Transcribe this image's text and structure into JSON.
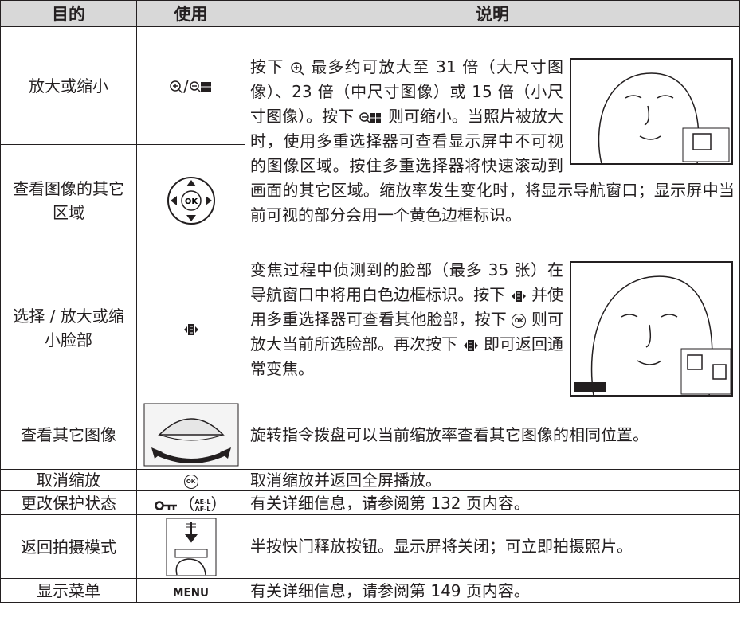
{
  "icons": {
    "ok": "OK"
  },
  "table": {
    "header": [
      "目的",
      "使用",
      "说明"
    ],
    "rows": [
      {
        "purpose": "放大或缩小",
        "use": "/",
        "description": [
          "按下",
          "最多约可放大至 31 倍（大尺寸图像）、23 倍（中尺寸图像）或 15 倍（小尺寸图像）。按下",
          "则可缩小。当照片被放大时，使用多重选择器可查看显示屏中不可视的图像区域。按住多重选择器将快速滚动到画面的其它区域。缩放率发生变化时，将显示导航窗口；显示屏中当前可视的部分会用一个黄色边框标识。"
        ]
      },
      {
        "purpose": "查看图像的其它区域"
      },
      {
        "purpose": "选择 / 放大或缩小脸部",
        "description": [
          "变焦过程中侦测到的脸部（最多 35 张）在导航窗口中将用白色边框标识。按下",
          "并使用多重选择器可查看其他脸部，按下",
          "则可放大当前所选脸部。再次按下",
          "即可返回通常变焦。"
        ]
      },
      {
        "purpose": "查看其它图像",
        "description": [
          "旋转指令拨盘可以当前缩放率查看其它图像的相同位置。"
        ]
      },
      {
        "purpose": "取消缩放",
        "description": [
          "取消缩放并返回全屏播放。"
        ]
      },
      {
        "purpose": "更改保护状态",
        "use": [
          "（",
          "AE-L",
          "AF-L",
          "）"
        ],
        "description": [
          "有关详细信息，请参阅第 132 页内容。"
        ]
      },
      {
        "purpose": "返回拍摄模式",
        "description": [
          "半按快门释放按钮。显示屏将关闭；可立即拍摄照片。"
        ]
      },
      {
        "purpose": "显示菜单",
        "use": "MENU",
        "description": [
          "有关详细信息，请参阅第 149 页内容。"
        ]
      }
    ]
  }
}
